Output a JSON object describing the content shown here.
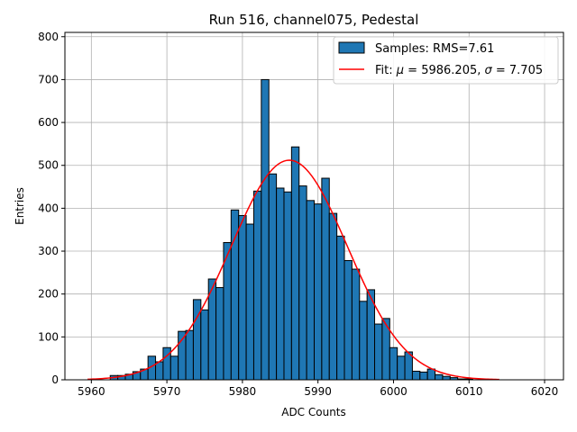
{
  "chart_data": {
    "type": "bar",
    "title": "Run 516, channel075, Pedestal",
    "xlabel": "ADC Counts",
    "ylabel": "Entries",
    "xlim": [
      5956.5,
      6022.5
    ],
    "ylim": [
      0,
      810
    ],
    "grid": true,
    "legend_position": "top-right",
    "x_ticks": [
      5960,
      5970,
      5980,
      5990,
      6000,
      6010,
      6020
    ],
    "y_ticks": [
      0,
      100,
      200,
      300,
      400,
      500,
      600,
      700,
      800
    ],
    "bin_width": 1,
    "series": [
      {
        "name": "Samples: RMS=7.61",
        "kind": "histogram",
        "color": "#1f77b4",
        "edge_color": "#000000",
        "bins": [
          5963,
          5964,
          5965,
          5966,
          5967,
          5968,
          5969,
          5970,
          5971,
          5972,
          5973,
          5974,
          5975,
          5976,
          5977,
          5978,
          5979,
          5980,
          5981,
          5982,
          5983,
          5984,
          5985,
          5986,
          5987,
          5988,
          5989,
          5990,
          5991,
          5992,
          5993,
          5994,
          5995,
          5996,
          5997,
          5998,
          5999,
          6000,
          6001,
          6002,
          6003,
          6004,
          6005,
          6006,
          6007,
          6008,
          6009,
          6010
        ],
        "values": [
          10,
          10,
          13,
          19,
          25,
          55,
          42,
          75,
          55,
          113,
          115,
          187,
          163,
          235,
          215,
          320,
          396,
          383,
          363,
          440,
          700,
          480,
          447,
          438,
          543,
          452,
          418,
          410,
          470,
          388,
          335,
          278,
          258,
          183,
          210,
          130,
          143,
          75,
          55,
          65,
          20,
          18,
          25,
          12,
          8,
          5,
          2,
          2
        ]
      },
      {
        "name": "Fit: μ = 5986.205, σ = 7.705",
        "kind": "gaussian-fit",
        "color": "#ff0000",
        "mu": 5986.205,
        "sigma": 7.705,
        "amplitude": 512,
        "x_range": [
          5959.5,
          6014
        ]
      }
    ],
    "legend": [
      {
        "label": "Samples: RMS=7.61",
        "mark": "patch"
      },
      {
        "prefix": "Fit: ",
        "mu_symbol": "μ",
        "mu_text": " = 5986.205, ",
        "sigma_symbol": "σ",
        "sigma_text": " = 7.705",
        "mark": "line"
      }
    ]
  }
}
